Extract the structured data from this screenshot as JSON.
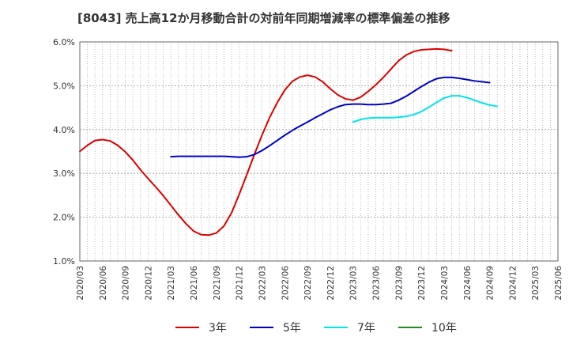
{
  "chart_data": {
    "type": "line",
    "title": "[8043]  売上高12か月移動合計の対前年同期増減率の標準偏差の推移",
    "xlabel": "",
    "ylabel": "",
    "ylim": [
      1.0,
      6.0
    ],
    "y_ticks": [
      "1.0%",
      "2.0%",
      "3.0%",
      "4.0%",
      "5.0%",
      "6.0%"
    ],
    "x_ticks": [
      "2020/03",
      "2020/06",
      "2020/09",
      "2020/12",
      "2021/03",
      "2021/06",
      "2021/09",
      "2021/12",
      "2022/03",
      "2022/06",
      "2022/09",
      "2022/12",
      "2023/03",
      "2023/06",
      "2023/09",
      "2023/12",
      "2024/03",
      "2024/06",
      "2024/09",
      "2024/12",
      "2025/03",
      "2025/06"
    ],
    "grid": true,
    "legend_position": "bottom",
    "series": [
      {
        "name": "3年",
        "color": "#dd0000",
        "start_tick": 0,
        "values": [
          3.5,
          3.64,
          3.75,
          3.77,
          3.74,
          3.64,
          3.49,
          3.3,
          3.08,
          2.88,
          2.69,
          2.49,
          2.27,
          2.05,
          1.85,
          1.68,
          1.6,
          1.59,
          1.64,
          1.8,
          2.1,
          2.52,
          2.97,
          3.43,
          3.87,
          4.27,
          4.61,
          4.9,
          5.1,
          5.2,
          5.24,
          5.2,
          5.09,
          4.93,
          4.79,
          4.7,
          4.67,
          4.74,
          4.87,
          5.02,
          5.19,
          5.38,
          5.57,
          5.7,
          5.78,
          5.82,
          5.83,
          5.84,
          5.83,
          5.8
        ]
      },
      {
        "name": "5年",
        "color": "#0000cc",
        "start_tick": 4,
        "values": [
          3.38,
          3.39,
          3.39,
          3.39,
          3.39,
          3.39,
          3.39,
          3.39,
          3.38,
          3.37,
          3.38,
          3.43,
          3.52,
          3.63,
          3.75,
          3.87,
          3.98,
          4.08,
          4.17,
          4.27,
          4.36,
          4.45,
          4.52,
          4.57,
          4.58,
          4.58,
          4.57,
          4.57,
          4.58,
          4.6,
          4.67,
          4.76,
          4.87,
          4.98,
          5.08,
          5.16,
          5.19,
          5.19,
          5.17,
          5.14,
          5.11,
          5.09,
          5.07
        ]
      },
      {
        "name": "7年",
        "color": "#00e5ee",
        "start_tick": 12,
        "values": [
          4.17,
          4.23,
          4.26,
          4.27,
          4.27,
          4.27,
          4.28,
          4.3,
          4.34,
          4.41,
          4.51,
          4.62,
          4.72,
          4.77,
          4.77,
          4.73,
          4.67,
          4.61,
          4.56,
          4.53
        ]
      },
      {
        "name": "10年",
        "color": "#228b22",
        "start_tick": 0,
        "values": []
      }
    ]
  }
}
